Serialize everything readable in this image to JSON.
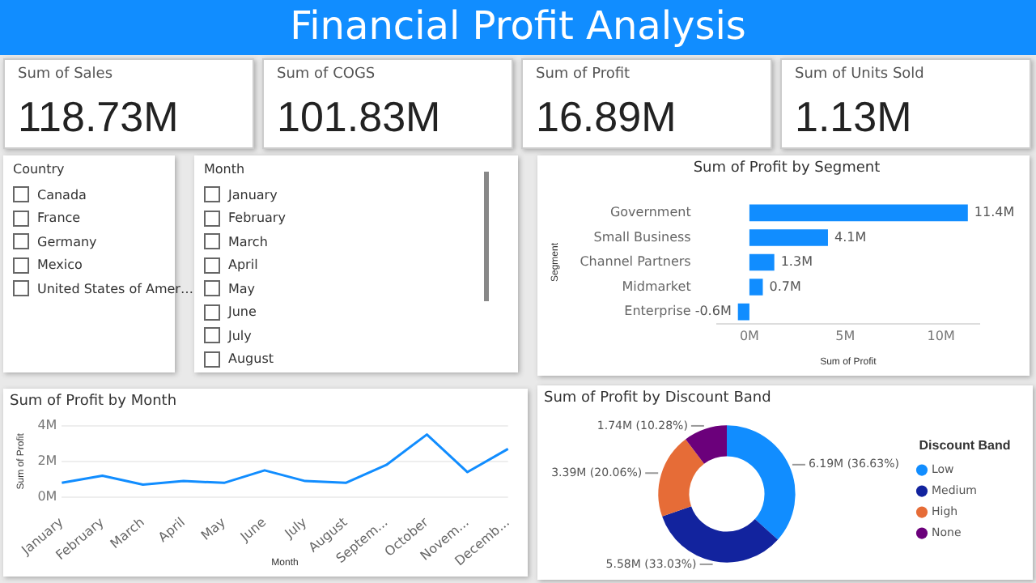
{
  "chart_data": [
    {
      "type": "other",
      "title": "Financial Profit Analysis"
    },
    {
      "type": "other",
      "title": "Sum of Sales",
      "annotations": [
        "118.73M"
      ]
    },
    {
      "type": "other",
      "title": "Sum of COGS",
      "annotations": [
        "101.83M"
      ]
    },
    {
      "type": "other",
      "title": "Sum of Profit",
      "annotations": [
        "16.89M"
      ]
    },
    {
      "type": "other",
      "title": "Sum of Units Sold",
      "annotations": [
        "1.13M"
      ]
    },
    {
      "type": "other",
      "title": "Country",
      "annotations": [
        "Canada",
        "France",
        "Germany",
        "Mexico",
        "United States of Amer…"
      ]
    },
    {
      "type": "other",
      "title": "Month",
      "annotations": [
        "January",
        "February",
        "March",
        "April",
        "May",
        "June",
        "July",
        "August"
      ]
    },
    {
      "type": "bar",
      "title": "Sum of Profit by Segment",
      "orientation": "horizontal",
      "xlabel": "Sum of Profit",
      "ylabel": "Segment",
      "categories": [
        "Government",
        "Small Business",
        "Channel Partners",
        "Midmarket",
        "Enterprise"
      ],
      "values": [
        11.4,
        4.1,
        1.3,
        0.7,
        -0.6
      ],
      "value_labels": [
        "11.4M",
        "4.1M",
        "1.3M",
        "0.7M",
        "-0.6M"
      ],
      "color": "#118dff",
      "xlim": [
        -1.7,
        12
      ],
      "xticks": [
        {
          "value": 0,
          "label": "0M"
        },
        {
          "value": 5,
          "label": "5M"
        },
        {
          "value": 10,
          "label": "10M"
        }
      ],
      "grid": false,
      "legend": false
    },
    {
      "type": "line",
      "title": "Sum of Profit by Month",
      "xlabel": "Month",
      "ylabel": "Sum of Profit",
      "categories": [
        "January",
        "February",
        "March",
        "April",
        "May",
        "June",
        "July",
        "August",
        "Septem...",
        "October",
        "Novem...",
        "Decemb..."
      ],
      "values": [
        0.8,
        1.2,
        0.7,
        0.9,
        0.8,
        1.5,
        0.9,
        0.8,
        1.8,
        3.5,
        1.4,
        2.7
      ],
      "color": "#118dff",
      "ylim": [
        0,
        4
      ],
      "yticks": [
        {
          "value": 0,
          "label": "0M"
        },
        {
          "value": 2,
          "label": "2M"
        },
        {
          "value": 4,
          "label": "4M"
        }
      ],
      "grid": "y",
      "legend": false,
      "marker": "none"
    },
    {
      "type": "donut",
      "title": "Sum of Profit by Discount Band",
      "legend_title": "Discount Band",
      "legend": "right",
      "categories": [
        "Low",
        "Medium",
        "High",
        "None"
      ],
      "values": [
        36.63,
        33.03,
        20.06,
        10.28
      ],
      "value_labels": [
        "6.19M (36.63%)",
        "5.58M (33.03%)",
        "3.39M (20.06%)",
        "1.74M (10.28%)"
      ],
      "colors": [
        "#118dff",
        "#12239e",
        "#e66c37",
        "#6b007b"
      ]
    }
  ]
}
